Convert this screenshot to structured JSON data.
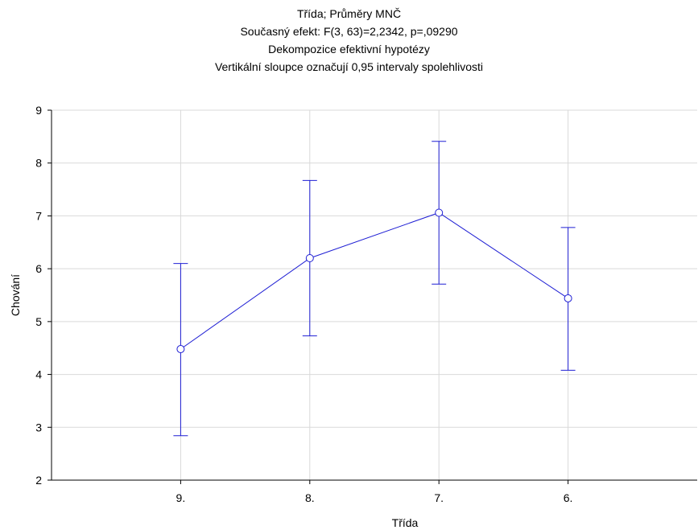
{
  "chart_data": {
    "type": "line",
    "title_lines": [
      "Třída; Průměry MNČ",
      "Současný efekt: F(3, 63)=2,2342, p=,09290",
      "Dekompozice efektivní hypotézy",
      "Vertikální sloupce označují 0,95 intervaly spolehlivosti"
    ],
    "xlabel": "Třída",
    "ylabel": "Chování",
    "categories": [
      "9.",
      "8.",
      "7.",
      "6."
    ],
    "series": [
      {
        "values": [
          4.48,
          6.2,
          7.06,
          5.44
        ],
        "lower": [
          2.84,
          4.73,
          5.71,
          4.08
        ],
        "upper": [
          6.1,
          7.67,
          8.41,
          6.78
        ],
        "color": "#1f1fd4"
      }
    ],
    "ylim": [
      2,
      9
    ],
    "yticks": [
      "2",
      "3",
      "4",
      "5",
      "6",
      "7",
      "8",
      "9"
    ],
    "grid": true
  }
}
